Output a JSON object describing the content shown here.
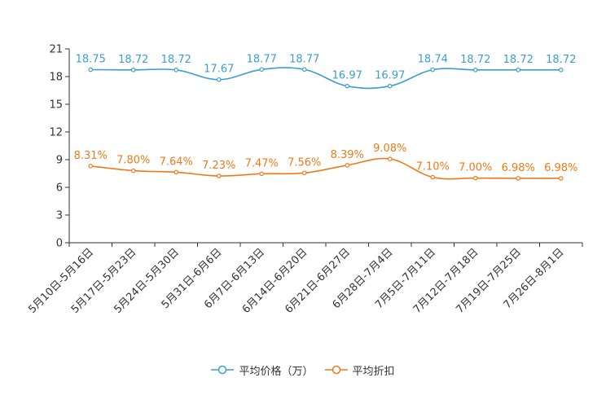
{
  "chart_data": {
    "type": "line",
    "categories": [
      "5月10日-5月16日",
      "5月17日-5月23日",
      "5月24日-5月30日",
      "5月31日-6月6日",
      "6月7日-6月13日",
      "6月14日-6月20日",
      "6月21日-6月27日",
      "6月28日-7月4日",
      "7月5日-7月11日",
      "7月12日-7月18日",
      "7月19日-7月25日",
      "7月26日-8月1日"
    ],
    "ylim": [
      0,
      21
    ],
    "yticks": [
      0,
      3,
      6,
      9,
      12,
      15,
      18,
      21
    ],
    "series": [
      {
        "name": "平均价格（万）",
        "color": "#3a9fd0",
        "values": [
          18.75,
          18.72,
          18.72,
          17.67,
          18.77,
          18.77,
          16.97,
          16.97,
          18.74,
          18.72,
          18.72,
          18.72
        ],
        "labels": [
          "18.75",
          "18.72",
          "18.72",
          "17.67",
          "18.77",
          "18.77",
          "16.97",
          "16.97",
          "18.74",
          "18.72",
          "18.72",
          "18.72"
        ]
      },
      {
        "name": "平均折扣",
        "color": "#f07a1a",
        "values": [
          8.31,
          7.8,
          7.64,
          7.23,
          7.47,
          7.56,
          8.39,
          9.08,
          7.1,
          7.0,
          6.98,
          6.98
        ],
        "labels": [
          "8.31%",
          "7.80%",
          "7.64%",
          "7.23%",
          "7.47%",
          "7.56%",
          "8.39%",
          "9.08%",
          "7.10%",
          "7.00%",
          "6.98%",
          "6.98%"
        ]
      }
    ],
    "legend_position": "bottom",
    "grid": false
  }
}
